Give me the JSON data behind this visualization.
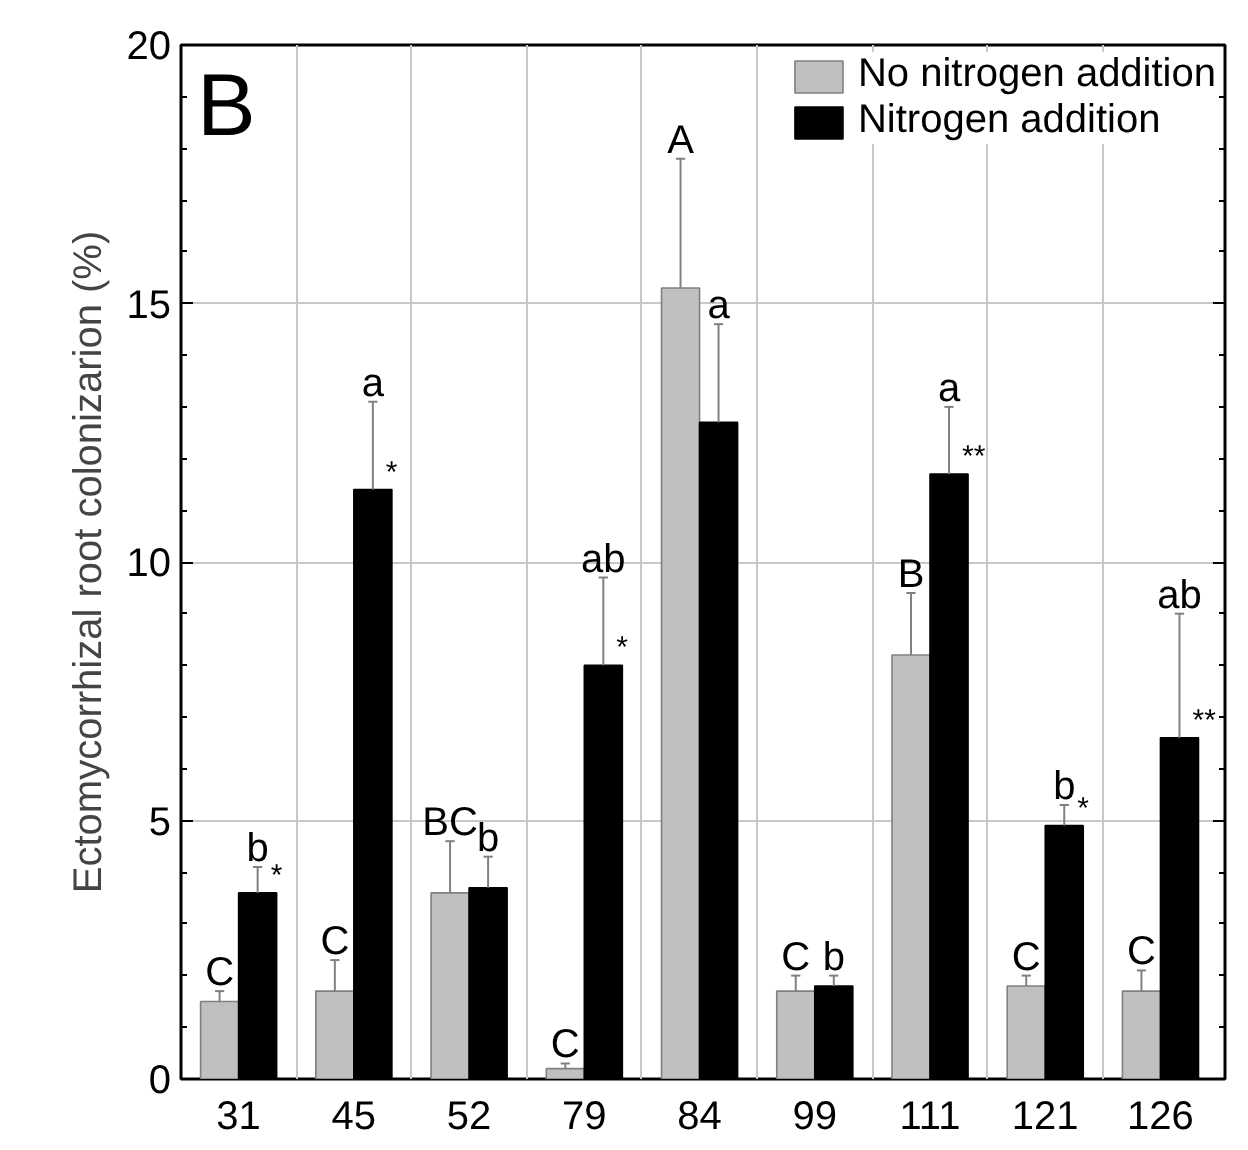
{
  "chart_data": {
    "type": "bar",
    "ylabel": "Ectomycorrhizal root colonizarion (%)",
    "categories": [
      "31",
      "45",
      "52",
      "79",
      "84",
      "99",
      "111",
      "121",
      "126"
    ],
    "series": [
      {
        "name": "No nitrogen addition",
        "color": "#c0c0c0",
        "values": [
          1.5,
          1.7,
          3.6,
          0.2,
          15.3,
          1.7,
          8.2,
          1.8,
          1.7
        ],
        "errors": [
          [
            1.5,
            1.7
          ],
          [
            1.7,
            2.3
          ],
          [
            3.6,
            4.6
          ],
          [
            0.2,
            0.3
          ],
          [
            15.3,
            17.8
          ],
          [
            1.7,
            2.0
          ],
          [
            8.2,
            9.4
          ],
          [
            1.8,
            2.0
          ],
          [
            1.7,
            2.1
          ]
        ],
        "value_labels": [
          "C",
          "C",
          "BC",
          "C",
          "A",
          "C",
          "B",
          "C",
          "C"
        ]
      },
      {
        "name": "Nitrogen addition",
        "color": "#000000",
        "values": [
          3.6,
          11.4,
          3.7,
          8.0,
          12.7,
          1.8,
          11.7,
          4.9,
          6.6
        ],
        "errors": [
          [
            3.6,
            4.1
          ],
          [
            11.4,
            13.1
          ],
          [
            3.7,
            4.3
          ],
          [
            8.0,
            9.7
          ],
          [
            12.7,
            14.6
          ],
          [
            1.8,
            2.0
          ],
          [
            11.7,
            13.0
          ],
          [
            4.9,
            5.3
          ],
          [
            6.6,
            9.0
          ]
        ],
        "value_labels": [
          "b",
          "a",
          "b",
          "ab",
          "a",
          "b",
          "a",
          "b",
          "ab"
        ]
      }
    ],
    "annotations": [
      "B",
      {
        "text": "*",
        "x": "31",
        "y": 3.6
      },
      {
        "text": "*",
        "x": "45",
        "y": 11.4
      },
      {
        "text": "*",
        "x": "79",
        "y": 8.0
      },
      {
        "text": "**",
        "x": "111",
        "y": 11.7
      },
      {
        "text": "*",
        "x": "121",
        "y": 4.9
      },
      {
        "text": "**",
        "x": "126",
        "y": 6.6
      }
    ],
    "ylim": [
      0,
      20
    ],
    "yticks": [
      0,
      5,
      10,
      15,
      20
    ],
    "grid": true,
    "legend": "top right"
  }
}
